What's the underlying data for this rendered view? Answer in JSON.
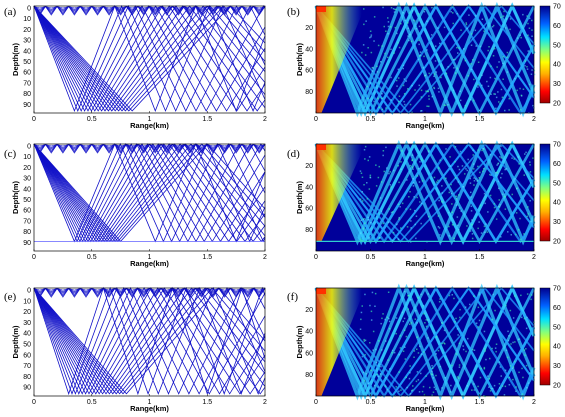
{
  "chart_data": [
    {
      "panel": "(a)",
      "type": "line",
      "description_kind": "ray-trace",
      "xlabel": "Range(km)",
      "ylabel": "Depth(m)",
      "xlim": [
        0,
        2
      ],
      "ylim": [
        0,
        100
      ],
      "y_inverted": true,
      "xticks": [
        "0",
        "0.5",
        "1",
        "1.5",
        "2"
      ],
      "yticks": [
        "0",
        "10",
        "20",
        "30",
        "40",
        "50",
        "60",
        "70",
        "80",
        "90"
      ],
      "line_color": "#1010c8",
      "ray_count": 18,
      "first_bottom_bounce_km": [
        0.35,
        0.85
      ],
      "bottom_line": false
    },
    {
      "panel": "(b)",
      "type": "heatmap",
      "xlabel": "Range(km)",
      "ylabel": "Depth(m)",
      "xlim": [
        0,
        2
      ],
      "ylim": [
        0,
        100
      ],
      "y_inverted": true,
      "xticks": [
        "0",
        "0.5",
        "1",
        "1.5",
        "2"
      ],
      "yticks": [
        "20",
        "40",
        "60",
        "80"
      ],
      "colorbar": {
        "min": 20,
        "max": 70,
        "ticks": [
          "70",
          "60",
          "50",
          "40",
          "30",
          "20"
        ]
      },
      "bottom_line": false
    },
    {
      "panel": "(c)",
      "type": "line",
      "xlabel": "Range(km)",
      "ylabel": "Depth(m)",
      "xlim": [
        0,
        2
      ],
      "ylim": [
        0,
        100
      ],
      "y_inverted": true,
      "xticks": [
        "0",
        "0.5",
        "1",
        "1.5",
        "2"
      ],
      "yticks": [
        "0",
        "10",
        "20",
        "30",
        "40",
        "50",
        "60",
        "70",
        "80",
        "90"
      ],
      "line_color": "#1010c8",
      "ray_count": 18,
      "first_bottom_bounce_km": [
        0.35,
        0.75
      ],
      "bottom_line": true,
      "bottom_depth_m": 91
    },
    {
      "panel": "(d)",
      "type": "heatmap",
      "xlabel": "Range(km)",
      "ylabel": "Depth(m)",
      "xlim": [
        0,
        2
      ],
      "ylim": [
        0,
        100
      ],
      "y_inverted": true,
      "xticks": [
        "0",
        "0.5",
        "1",
        "1.5",
        "2"
      ],
      "yticks": [
        "20",
        "40",
        "60",
        "80"
      ],
      "colorbar": {
        "min": 20,
        "max": 70,
        "ticks": [
          "70",
          "60",
          "50",
          "40",
          "30",
          "20"
        ]
      },
      "bottom_line": true,
      "bottom_depth_m": 91
    },
    {
      "panel": "(e)",
      "type": "line",
      "xlabel": "Range(km)",
      "ylabel": "Depth(m)",
      "xlim": [
        0,
        2
      ],
      "ylim": [
        0,
        100
      ],
      "y_inverted": true,
      "xticks": [
        "0",
        "0.5",
        "1",
        "1.5",
        "2"
      ],
      "yticks": [
        "0",
        "10",
        "20",
        "30",
        "40",
        "50",
        "60",
        "70",
        "80",
        "90"
      ],
      "line_color": "#1010c8",
      "ray_count": 18,
      "first_bottom_bounce_km": [
        0.3,
        0.8
      ],
      "bottom_line": false
    },
    {
      "panel": "(f)",
      "type": "heatmap",
      "xlabel": "Range(km)",
      "ylabel": "Depth(m)",
      "xlim": [
        0,
        2
      ],
      "ylim": [
        0,
        100
      ],
      "y_inverted": true,
      "xticks": [
        "0",
        "0.5",
        "1",
        "1.5",
        "2"
      ],
      "yticks": [
        "20",
        "40",
        "60",
        "80"
      ],
      "colorbar": {
        "min": 20,
        "max": 70,
        "ticks": [
          "70",
          "60",
          "50",
          "40",
          "30",
          "20"
        ]
      },
      "bottom_line": false
    }
  ]
}
